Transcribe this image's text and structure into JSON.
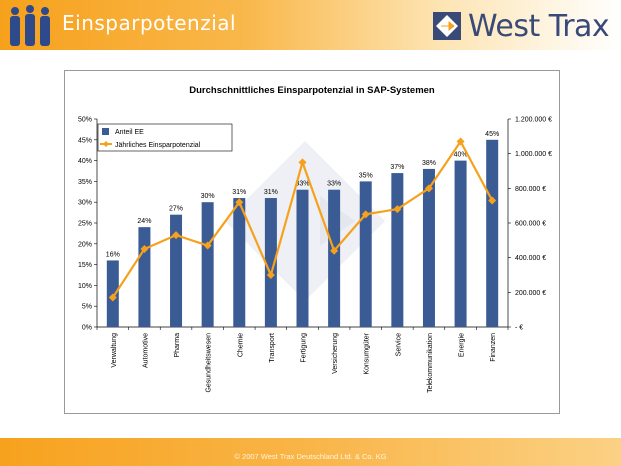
{
  "header": {
    "title": "Einsparpotenzial",
    "logo_text": "West Trax",
    "logo_icon": "arrow-diamond-icon",
    "people_icon": "people-silhouettes-icon"
  },
  "footer": {
    "text": "© 2007 West Trax Deutschland Ltd. & Co. KG"
  },
  "colors": {
    "bar": "#3b5b94",
    "line": "#f6a11c",
    "header": "#f6a11c",
    "logo": "#3a4a78"
  },
  "chart_data": {
    "type": "bar",
    "title": "Durchschnittliches Einsparpotenzial in SAP-Systemen",
    "categories": [
      "Verwaltung",
      "Automotive",
      "Pharma",
      "Gesundheitswesen",
      "Chemie",
      "Transport",
      "Fertigung",
      "Versicherung",
      "Konsumgüter",
      "Service",
      "Telekommunikation",
      "Energie",
      "Finanzen"
    ],
    "series": [
      {
        "name": "Anteil EE",
        "type": "bar",
        "axis": "left",
        "values": [
          16,
          24,
          27,
          30,
          31,
          31,
          33,
          33,
          35,
          37,
          38,
          40,
          45
        ],
        "labels": [
          "16%",
          "24%",
          "27%",
          "30%",
          "31%",
          "31%",
          "33%",
          "33%",
          "35%",
          "37%",
          "38%",
          "40%",
          "45%"
        ]
      },
      {
        "name": "Jährliches Einsparpotenzial",
        "type": "line",
        "axis": "right",
        "values": [
          170000,
          450000,
          530000,
          470000,
          720000,
          300000,
          950000,
          440000,
          650000,
          680000,
          800000,
          1070000,
          730000
        ]
      }
    ],
    "y_left": {
      "min": 0,
      "max": 50,
      "ticks": [
        "0%",
        "5%",
        "10%",
        "15%",
        "20%",
        "25%",
        "30%",
        "35%",
        "40%",
        "45%",
        "50%"
      ]
    },
    "y_right": {
      "min": 0,
      "max": 1200000,
      "ticks": [
        "-   €",
        "200.000 €",
        "400.000 €",
        "600.000 €",
        "800.000 €",
        "1.000.000 €",
        "1.200.000 €"
      ]
    },
    "legend_position": "top-left",
    "grid": false
  }
}
